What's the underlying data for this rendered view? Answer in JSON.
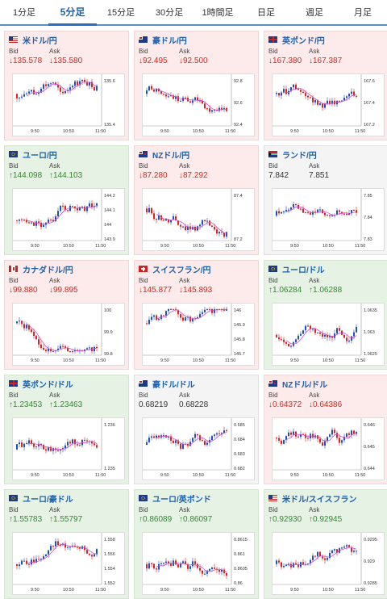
{
  "tabs": [
    {
      "label": "1分足"
    },
    {
      "label": "5分足"
    },
    {
      "label": "15分足"
    },
    {
      "label": "30分足"
    },
    {
      "label": "1時間足"
    },
    {
      "label": "日足"
    },
    {
      "label": "週足"
    },
    {
      "label": "月足"
    }
  ],
  "active_tab": 1,
  "colors": {
    "up_candle": "#1f4fbf",
    "down_candle": "#e02020",
    "ma_line": "#d24dd2",
    "accent": "#1a5fb0",
    "up_bg": "#e6f2e4",
    "down_bg": "#fdeaea"
  },
  "cards": [
    {
      "pair": "米ドル/円",
      "flag": "us-flag-icon",
      "trend": "down",
      "bid_label": "Bid",
      "ask_label": "Ask",
      "bid": "↓135.578",
      "ask": "↓135.580",
      "y_ticks": [
        "135.6",
        "135.4"
      ],
      "x_ticks": [
        "9:50",
        "10:50",
        "11:50"
      ]
    },
    {
      "pair": "豪ドル/円",
      "flag": "au-flag-icon",
      "trend": "down",
      "bid_label": "Bid",
      "ask_label": "Ask",
      "bid": "↓92.495",
      "ask": "↓92.500",
      "y_ticks": [
        "92.8",
        "92.6",
        "92.4"
      ],
      "x_ticks": [
        "9:50",
        "10:50",
        "11:50"
      ]
    },
    {
      "pair": "英ポンド/円",
      "flag": "gb-flag-icon",
      "trend": "down",
      "bid_label": "Bid",
      "ask_label": "Ask",
      "bid": "↓167.380",
      "ask": "↓167.387",
      "y_ticks": [
        "167.6",
        "167.4",
        "167.2"
      ],
      "x_ticks": [
        "9:50",
        "10:50",
        "11:50"
      ]
    },
    {
      "pair": "ユーロ/円",
      "flag": "eu-flag-icon",
      "trend": "up",
      "bid_label": "Bid",
      "ask_label": "Ask",
      "bid": "↑144.098",
      "ask": "↑144.103",
      "y_ticks": [
        "144.2",
        "144.1",
        "144",
        "143.9"
      ],
      "x_ticks": [
        "9:50",
        "10:50",
        "11:50"
      ]
    },
    {
      "pair": "NZドル/円",
      "flag": "nz-flag-icon",
      "trend": "down",
      "bid_label": "Bid",
      "ask_label": "Ask",
      "bid": "↓87.280",
      "ask": "↓87.292",
      "y_ticks": [
        "87.4",
        "87.2"
      ],
      "x_ticks": [
        "9:50",
        "10:50",
        "11:50"
      ]
    },
    {
      "pair": "ランド/円",
      "flag": "za-flag-icon",
      "trend": "flat",
      "bid_label": "Bid",
      "ask_label": "Ask",
      "bid": "7.842",
      "ask": "7.851",
      "y_ticks": [
        "7.85",
        "7.84",
        "7.83"
      ],
      "x_ticks": [
        "9:50",
        "10:50",
        "11:50"
      ]
    },
    {
      "pair": "カナダドル/円",
      "flag": "ca-flag-icon",
      "trend": "down",
      "bid_label": "Bid",
      "ask_label": "Ask",
      "bid": "↓99.880",
      "ask": "↓99.895",
      "y_ticks": [
        "100",
        "99.9",
        "99.8"
      ],
      "x_ticks": [
        "9:50",
        "10:50",
        "11:50"
      ]
    },
    {
      "pair": "スイスフラン/円",
      "flag": "ch-flag-icon",
      "trend": "down",
      "bid_label": "Bid",
      "ask_label": "Ask",
      "bid": "↓145.877",
      "ask": "↓145.893",
      "y_ticks": [
        "146",
        "145.9",
        "145.8",
        "145.7"
      ],
      "x_ticks": [
        "9:50",
        "10:50",
        "11:50"
      ]
    },
    {
      "pair": "ユーロ/ドル",
      "flag": "eu-us-flag-icon",
      "trend": "up",
      "bid_label": "Bid",
      "ask_label": "Ask",
      "bid": "↑1.06284",
      "ask": "↑1.06288",
      "y_ticks": [
        "1.0635",
        "1.063",
        "1.0625"
      ],
      "x_ticks": [
        "9:50",
        "10:50",
        "11:50"
      ]
    },
    {
      "pair": "英ポンド/ドル",
      "flag": "gb-us-flag-icon",
      "trend": "up",
      "bid_label": "Bid",
      "ask_label": "Ask",
      "bid": "↑1.23453",
      "ask": "↑1.23463",
      "y_ticks": [
        "1.236",
        "1.235"
      ],
      "x_ticks": [
        "9:50",
        "10:50",
        "11:50"
      ]
    },
    {
      "pair": "豪ドル/ドル",
      "flag": "au-us-flag-icon",
      "trend": "flat",
      "bid_label": "Bid",
      "ask_label": "Ask",
      "bid": "0.68219",
      "ask": "0.68228",
      "y_ticks": [
        "0.685",
        "0.684",
        "0.683",
        "0.682"
      ],
      "x_ticks": [
        "9:50",
        "10:50",
        "11:50"
      ]
    },
    {
      "pair": "NZドル/ドル",
      "flag": "nz-us-flag-icon",
      "trend": "down",
      "bid_label": "Bid",
      "ask_label": "Ask",
      "bid": "↓0.64372",
      "ask": "↓0.64386",
      "y_ticks": [
        "0.646",
        "0.645",
        "0.644"
      ],
      "x_ticks": [
        "9:50",
        "10:50",
        "11:50"
      ]
    },
    {
      "pair": "ユーロ/豪ドル",
      "flag": "eu-au-flag-icon",
      "trend": "up",
      "bid_label": "Bid",
      "ask_label": "Ask",
      "bid": "↑1.55783",
      "ask": "↑1.55797",
      "y_ticks": [
        "1.558",
        "1.556",
        "1.554",
        "1.552"
      ],
      "x_ticks": [
        "9:50",
        "10:50",
        "11:50"
      ]
    },
    {
      "pair": "ユーロ/英ポンド",
      "flag": "eu-gb-flag-icon",
      "trend": "up",
      "bid_label": "Bid",
      "ask_label": "Ask",
      "bid": "↑0.86089",
      "ask": "↑0.86097",
      "y_ticks": [
        "0.8615",
        "0.861",
        "0.8605",
        "0.86"
      ],
      "x_ticks": [
        "9:50",
        "10:50",
        "11:50"
      ]
    },
    {
      "pair": "米ドル/スイスフラン",
      "flag": "us-ch-flag-icon",
      "trend": "up",
      "bid_label": "Bid",
      "ask_label": "Ask",
      "bid": "↑0.92930",
      "ask": "↑0.92945",
      "y_ticks": [
        "0.9295",
        "0.929",
        "0.9285"
      ],
      "x_ticks": [
        "9:50",
        "10:50",
        "11:50"
      ]
    }
  ]
}
